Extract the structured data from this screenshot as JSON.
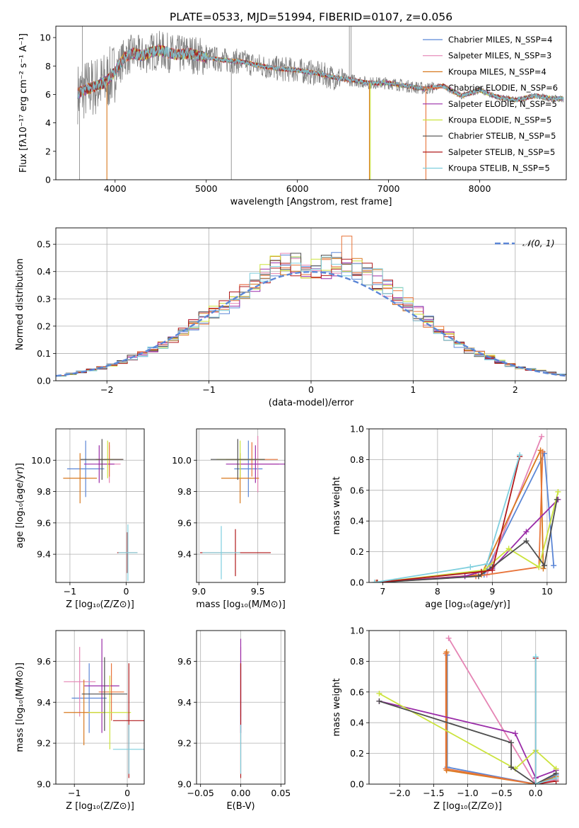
{
  "chart_data": [
    {
      "id": "spectrum",
      "type": "line",
      "title": "PLATE=0533, MJD=51994, FIBERID=0107, z=0.056",
      "xlabel": "wavelength [Angstrom, rest frame]",
      "ylabel": "Flux [fλ10⁻¹⁷ erg cm⁻² s⁻¹ A⁻¹]",
      "xlim": [
        3350,
        8950
      ],
      "ylim": [
        0,
        10.8
      ],
      "xticks": [
        4000,
        5000,
        6000,
        7000,
        8000
      ],
      "yticks": [
        0,
        2,
        4,
        6,
        8,
        10
      ],
      "grid": false,
      "legend_position": "top-right",
      "data_color": "#808080",
      "data_x_range": [
        3590,
        8920
      ],
      "continuum": {
        "x": [
          3600,
          3700,
          3800,
          3900,
          4000,
          4100,
          4200,
          4300,
          4400,
          4500,
          4600,
          4700,
          4800,
          5000,
          5200,
          5400,
          5600,
          5800,
          6000,
          6200,
          6400,
          6600,
          6800,
          7000,
          7200,
          7400,
          7600,
          7800,
          8000,
          8200,
          8400,
          8600,
          8800
        ],
        "y": [
          6.1,
          6.4,
          6.6,
          6.9,
          7.6,
          8.6,
          8.9,
          8.7,
          9.0,
          9.1,
          8.9,
          8.8,
          8.9,
          8.6,
          8.4,
          8.3,
          8.0,
          7.8,
          7.7,
          7.5,
          7.2,
          7.0,
          6.8,
          6.8,
          6.6,
          6.4,
          6.6,
          5.9,
          6.3,
          5.8,
          5.6,
          5.9,
          5.7
        ]
      },
      "legend": [
        {
          "label": "Chabrier MILES, N_SSP=4",
          "color": "#5b86d6"
        },
        {
          "label": "Salpeter MILES, N_SSP=3",
          "color": "#e584b4"
        },
        {
          "label": "Kroupa MILES, N_SSP=4",
          "color": "#d8791e"
        },
        {
          "label": "Chabrier ELODIE, N_SSP=6",
          "color": "#e8743a"
        },
        {
          "label": "Salpeter ELODIE, N_SSP=5",
          "color": "#9a2ca8"
        },
        {
          "label": "Kroupa ELODIE, N_SSP=5",
          "color": "#cbe33c"
        },
        {
          "label": "Chabrier STELIB, N_SSP=5",
          "color": "#4e4e4e"
        },
        {
          "label": "Salpeter STELIB, N_SSP=5",
          "color": "#b0191b"
        },
        {
          "label": "Kroupa STELIB, N_SSP=5",
          "color": "#7fcfde"
        }
      ]
    },
    {
      "id": "residuals",
      "type": "histogram",
      "xlabel": "(data-model)/error",
      "ylabel": "Normed distribution",
      "xlim": [
        -2.5,
        2.5
      ],
      "ylim": [
        0,
        0.56
      ],
      "xticks": [
        -2,
        -1,
        0,
        1,
        2
      ],
      "yticks": [
        0.0,
        0.1,
        0.2,
        0.3,
        0.4,
        0.5
      ],
      "grid": true,
      "legend_position": "top-right",
      "reference_curve": {
        "label": "𝒩(0, 1)",
        "mean": 0,
        "sigma": 1,
        "color": "#5b86d6",
        "dashed": true
      },
      "bin_width": 0.1,
      "profile_x": [
        -2.5,
        -2.0,
        -1.5,
        -1.0,
        -0.7,
        -0.5,
        -0.3,
        0.0,
        0.3,
        0.5,
        0.7,
        1.0,
        1.5,
        2.0,
        2.5
      ],
      "profile_y": [
        0.015,
        0.05,
        0.12,
        0.24,
        0.31,
        0.38,
        0.44,
        0.41,
        0.43,
        0.4,
        0.36,
        0.26,
        0.12,
        0.05,
        0.02
      ],
      "series_colors": [
        "#5b86d6",
        "#e584b4",
        "#d8791e",
        "#e8743a",
        "#9a2ca8",
        "#cbe33c",
        "#4e4e4e",
        "#b0191b",
        "#7fcfde"
      ]
    },
    {
      "id": "age_vs_Z",
      "type": "errorbar",
      "xlabel": "Z [log₁₀(Z/Z⊙)]",
      "ylabel": "age  [log₁₀(age/yr)]",
      "xlim": [
        -1.25,
        0.32
      ],
      "ylim": [
        9.22,
        10.2
      ],
      "xticks": [
        -1,
        0
      ],
      "yticks": [
        9.4,
        9.6,
        9.8,
        10.0
      ],
      "points": [
        {
          "x": -0.72,
          "y": 9.945,
          "xerr": 0.33,
          "yerr": 0.18,
          "color": "#5b86d6"
        },
        {
          "x": -0.3,
          "y": 9.975,
          "xerr": 0.2,
          "yerr": 0.12,
          "color": "#e584b4"
        },
        {
          "x": -0.82,
          "y": 9.885,
          "xerr": 0.3,
          "yerr": 0.16,
          "color": "#d8791e"
        },
        {
          "x": -0.3,
          "y": 10.005,
          "xerr": 0.24,
          "yerr": 0.11,
          "color": "#e8743a"
        },
        {
          "x": -0.48,
          "y": 9.975,
          "xerr": 0.27,
          "yerr": 0.12,
          "color": "#9a2ca8"
        },
        {
          "x": -0.33,
          "y": 10.005,
          "xerr": 0.1,
          "yerr": 0.12,
          "color": "#cbe33c"
        },
        {
          "x": -0.43,
          "y": 10.005,
          "xerr": 0.38,
          "yerr": 0.13,
          "color": "#4e4e4e"
        },
        {
          "x": 0.02,
          "y": 9.41,
          "xerr": 0.18,
          "yerr": 0.13,
          "color": "#b0191b"
        },
        {
          "x": 0.03,
          "y": 9.41,
          "xerr": 0.17,
          "yerr": 0.18,
          "color": "#7fcfde"
        }
      ]
    },
    {
      "id": "age_vs_mass",
      "type": "errorbar",
      "xlabel": "mass [log₁₀(M/M⊙)]",
      "ylabel": "",
      "xlim": [
        8.98,
        9.73
      ],
      "ylim": [
        9.22,
        10.2
      ],
      "xticks": [
        9.0,
        9.5
      ],
      "yticks": [
        9.4,
        9.6,
        9.8,
        10.0
      ],
      "points": [
        {
          "x": 9.42,
          "y": 9.945,
          "xerr": 0.12,
          "yerr": 0.18,
          "color": "#5b86d6"
        },
        {
          "x": 9.5,
          "y": 9.975,
          "xerr": 0.18,
          "yerr": 0.18,
          "color": "#e584b4"
        },
        {
          "x": 9.35,
          "y": 9.885,
          "xerr": 0.16,
          "yerr": 0.16,
          "color": "#d8791e"
        },
        {
          "x": 9.45,
          "y": 10.005,
          "xerr": 0.22,
          "yerr": 0.11,
          "color": "#e8743a"
        },
        {
          "x": 9.48,
          "y": 9.975,
          "xerr": 0.25,
          "yerr": 0.12,
          "color": "#9a2ca8"
        },
        {
          "x": 9.35,
          "y": 10.005,
          "xerr": 0.2,
          "yerr": 0.12,
          "color": "#cbe33c"
        },
        {
          "x": 9.33,
          "y": 10.005,
          "xerr": 0.23,
          "yerr": 0.13,
          "color": "#4e4e4e"
        },
        {
          "x": 9.31,
          "y": 9.41,
          "xerr": 0.3,
          "yerr": 0.15,
          "color": "#b0191b"
        },
        {
          "x": 9.19,
          "y": 9.41,
          "xerr": 0.16,
          "yerr": 0.17,
          "color": "#7fcfde"
        }
      ]
    },
    {
      "id": "weight_vs_age",
      "type": "line",
      "xlabel": "age  [log₁₀(age/yr)]",
      "ylabel": "mass weight",
      "xlim": [
        6.75,
        10.35
      ],
      "ylim": [
        0,
        1.0
      ],
      "xticks": [
        7,
        8,
        9,
        10
      ],
      "yticks": [
        0.0,
        0.2,
        0.4,
        0.6,
        0.8,
        1.0
      ],
      "grid": true,
      "series": [
        {
          "color": "#5b86d6",
          "x": [
            6.88,
            8.85,
            9.95,
            10.12
          ],
          "y": [
            0.0,
            0.05,
            0.84,
            0.11
          ]
        },
        {
          "color": "#e584b4",
          "x": [
            6.9,
            8.9,
            9.9
          ],
          "y": [
            0.0,
            0.05,
            0.95
          ]
        },
        {
          "color": "#d8791e",
          "x": [
            6.9,
            8.8,
            9.88,
            9.93
          ],
          "y": [
            0.0,
            0.05,
            0.86,
            0.09
          ]
        },
        {
          "color": "#e8743a",
          "x": [
            6.88,
            8.7,
            9.85,
            9.92
          ],
          "y": [
            0.0,
            0.04,
            0.1,
            0.85
          ]
        },
        {
          "color": "#9a2ca8",
          "x": [
            6.9,
            8.5,
            9.0,
            9.62,
            10.2
          ],
          "y": [
            0.0,
            0.04,
            0.09,
            0.33,
            0.54
          ]
        },
        {
          "color": "#cbe33c",
          "x": [
            6.9,
            8.85,
            9.3,
            9.85,
            10.2
          ],
          "y": [
            0.0,
            0.08,
            0.22,
            0.1,
            0.59
          ]
        },
        {
          "color": "#4e4e4e",
          "x": [
            6.9,
            8.75,
            9.0,
            9.62,
            9.95,
            10.18
          ],
          "y": [
            0.0,
            0.04,
            0.1,
            0.27,
            0.11,
            0.54
          ]
        },
        {
          "color": "#b0191b",
          "x": [
            6.9,
            8.8,
            9.0,
            9.5
          ],
          "y": [
            0.0,
            0.07,
            0.08,
            0.82
          ]
        },
        {
          "color": "#7fcfde",
          "x": [
            6.85,
            8.6,
            8.9,
            9.5
          ],
          "y": [
            0.0,
            0.1,
            0.12,
            0.83
          ]
        }
      ]
    },
    {
      "id": "mass_vs_Z",
      "type": "errorbar",
      "xlabel": "Z [log₁₀(Z/Z⊙)]",
      "ylabel": "mass [log₁₀(M/M⊙)]",
      "xlim": [
        -1.35,
        0.32
      ],
      "ylim": [
        9.0,
        9.75
      ],
      "xticks": [
        -1,
        0
      ],
      "yticks": [
        9.0,
        9.2,
        9.4,
        9.6
      ],
      "points": [
        {
          "x": -0.72,
          "y": 9.42,
          "xerr": 0.33,
          "yerr": 0.17,
          "color": "#5b86d6"
        },
        {
          "x": -0.9,
          "y": 9.5,
          "xerr": 0.3,
          "yerr": 0.17,
          "color": "#e584b4"
        },
        {
          "x": -0.82,
          "y": 9.35,
          "xerr": 0.38,
          "yerr": 0.16,
          "color": "#d8791e"
        },
        {
          "x": -0.3,
          "y": 9.45,
          "xerr": 0.24,
          "yerr": 0.14,
          "color": "#e8743a"
        },
        {
          "x": -0.48,
          "y": 9.48,
          "xerr": 0.33,
          "yerr": 0.23,
          "color": "#9a2ca8"
        },
        {
          "x": -0.33,
          "y": 9.35,
          "xerr": 0.4,
          "yerr": 0.18,
          "color": "#cbe33c"
        },
        {
          "x": -0.43,
          "y": 9.44,
          "xerr": 0.43,
          "yerr": 0.18,
          "color": "#4e4e4e"
        },
        {
          "x": 0.03,
          "y": 9.31,
          "xerr": 0.3,
          "yerr": 0.28,
          "color": "#b0191b"
        },
        {
          "x": 0.03,
          "y": 9.17,
          "xerr": 0.3,
          "yerr": 0.12,
          "color": "#7fcfde"
        }
      ]
    },
    {
      "id": "mass_vs_EBV",
      "type": "errorbar",
      "xlabel": "E(B-V)",
      "ylabel": "",
      "xlim": [
        -0.055,
        0.055
      ],
      "ylim": [
        9.0,
        9.75
      ],
      "xticks": [
        -0.05,
        0.0,
        0.05
      ],
      "yticks": [
        9.0,
        9.2,
        9.4,
        9.6
      ],
      "points": [
        {
          "x": 0.0,
          "y": 9.42,
          "xerr": 0,
          "yerr": 0.17,
          "color": "#5b86d6"
        },
        {
          "x": 0.0,
          "y": 9.5,
          "xerr": 0,
          "yerr": 0.17,
          "color": "#e584b4"
        },
        {
          "x": 0.0,
          "y": 9.48,
          "xerr": 0,
          "yerr": 0.23,
          "color": "#9a2ca8"
        },
        {
          "x": 0.0,
          "y": 9.31,
          "xerr": 0,
          "yerr": 0.28,
          "color": "#b0191b"
        },
        {
          "x": 0.0,
          "y": 9.17,
          "xerr": 0,
          "yerr": 0.12,
          "color": "#7fcfde"
        }
      ]
    },
    {
      "id": "weight_vs_Z",
      "type": "line",
      "xlabel": "Z [log₁₀(Z/Z⊙)]",
      "ylabel": "mass weight",
      "xlim": [
        -2.45,
        0.45
      ],
      "ylim": [
        0,
        1.0
      ],
      "xticks": [
        -2.0,
        -1.5,
        -1.0,
        -0.5,
        0.0
      ],
      "yticks": [
        0.0,
        0.2,
        0.4,
        0.6,
        0.8,
        1.0
      ],
      "grid": true,
      "series": [
        {
          "color": "#5b86d6",
          "x": [
            -1.3,
            -1.3,
            0.0,
            0.3
          ],
          "y": [
            0.84,
            0.11,
            0.0,
            0.06
          ]
        },
        {
          "color": "#e584b4",
          "x": [
            -1.28,
            0.0,
            0.3
          ],
          "y": [
            0.95,
            0.0,
            0.03
          ]
        },
        {
          "color": "#d8791e",
          "x": [
            -1.31,
            -1.31,
            0.0,
            0.3
          ],
          "y": [
            0.86,
            0.09,
            0.0,
            0.05
          ]
        },
        {
          "color": "#e8743a",
          "x": [
            -1.32,
            -1.32,
            0.0,
            0.3
          ],
          "y": [
            0.85,
            0.1,
            0.0,
            0.04
          ]
        },
        {
          "color": "#9a2ca8",
          "x": [
            -2.3,
            -0.3,
            0.0,
            0.3
          ],
          "y": [
            0.54,
            0.33,
            0.04,
            0.09
          ]
        },
        {
          "color": "#cbe33c",
          "x": [
            -2.3,
            -0.3,
            0.0,
            0.3
          ],
          "y": [
            0.59,
            0.1,
            0.22,
            0.1
          ]
        },
        {
          "color": "#4e4e4e",
          "x": [
            -2.3,
            -0.36,
            -0.36,
            0.0,
            0.3
          ],
          "y": [
            0.54,
            0.27,
            0.11,
            0.0,
            0.07
          ]
        },
        {
          "color": "#b0191b",
          "x": [
            0.0,
            0.0,
            0.3
          ],
          "y": [
            0.82,
            0.0,
            0.02
          ]
        },
        {
          "color": "#7fcfde",
          "x": [
            0.0,
            0.0,
            0.3
          ],
          "y": [
            0.83,
            0.0,
            0.04
          ]
        }
      ]
    }
  ]
}
